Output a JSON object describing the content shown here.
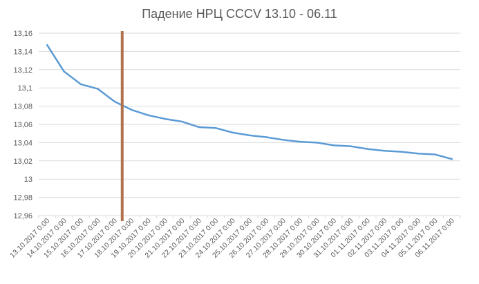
{
  "chart_data": {
    "type": "line",
    "title": "Падение НРЦ  CCCV 13.10 - 06.11",
    "xlabel": "",
    "ylabel": "",
    "ylim": [
      12.96,
      13.16
    ],
    "yticks": [
      "12,96",
      "12,98",
      "13",
      "13,02",
      "13,04",
      "13,06",
      "13,08",
      "13,1",
      "13,12",
      "13,14",
      "13,16"
    ],
    "grid": true,
    "legend": "none",
    "categories": [
      "13.10.2017 0:00",
      "14.10.2017 0:00",
      "15.10.2017 0:00",
      "16.10.2017 0:00",
      "17.10.2017 0:00",
      "18.10.2017 0:00",
      "19.10.2017 0:00",
      "20.10.2017 0:00",
      "21.10.2017 0:00",
      "22.10.2017 0:00",
      "23.10.2017 0:00",
      "24.10.2017 0:00",
      "25.10.2017 0:00",
      "26.10.2017 0:00",
      "27.10.2017 0:00",
      "28.10.2017 0:00",
      "29.10.2017 0:00",
      "30.10.2017 0:00",
      "31.10.2017 0:00",
      "01.11.2017 0:00",
      "02.11.2017 0:00",
      "03.11.2017 0:00",
      "04.11.2017 0:00",
      "05.11.2017 0:00",
      "06.11.2017 0:00"
    ],
    "series": [
      {
        "values": [
          13.147,
          13.118,
          13.104,
          13.099,
          13.085,
          13.076,
          13.07,
          13.066,
          13.063,
          13.057,
          13.056,
          13.051,
          13.048,
          13.046,
          13.043,
          13.041,
          13.04,
          13.037,
          13.036,
          13.033,
          13.031,
          13.03,
          13.028,
          13.027,
          13.022
        ],
        "color": "#5B9BD5"
      }
    ],
    "marker_line": {
      "x_category": "17.10.2017 0:00",
      "position": "between 17.10 and 18.10",
      "color": "#B0714C"
    },
    "colors": {
      "grid": "#D9D9D9",
      "axis_text": "#595959"
    }
  }
}
